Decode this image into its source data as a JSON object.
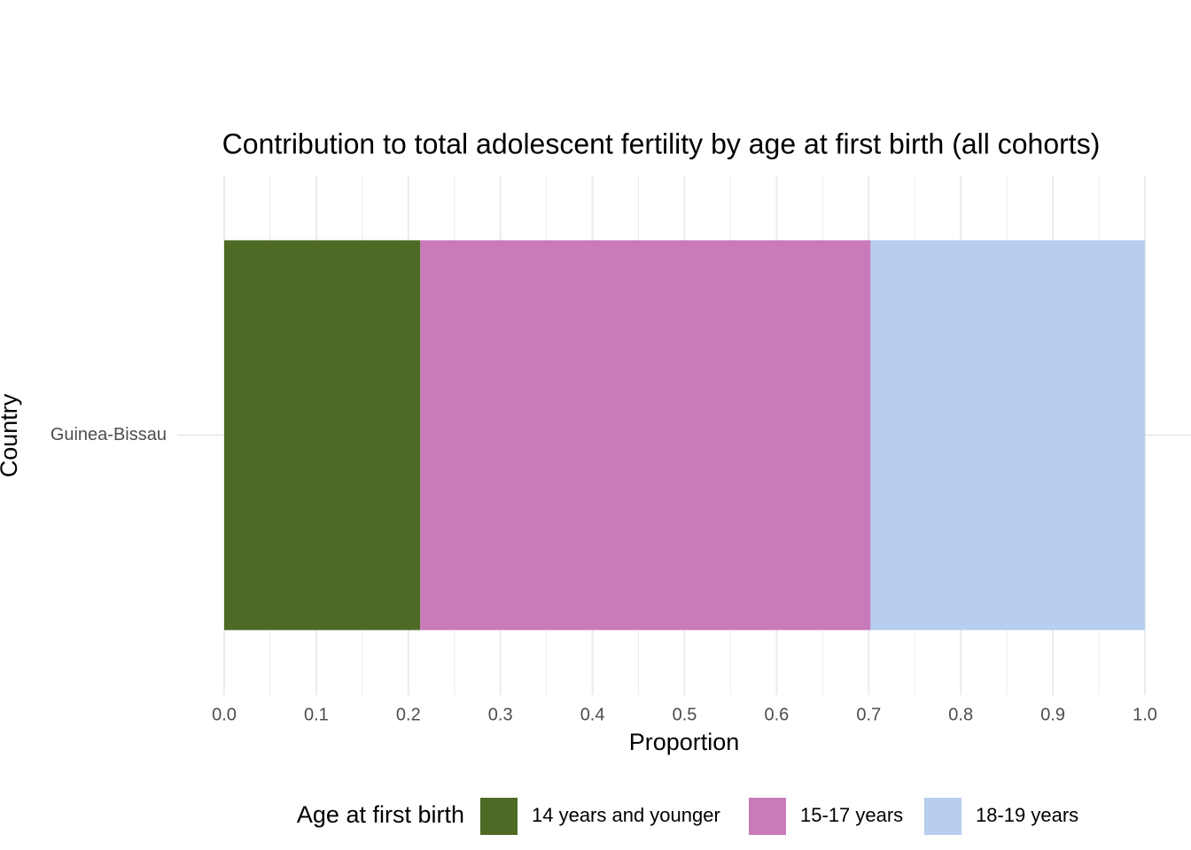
{
  "chart_data": {
    "type": "stacked-barh",
    "title": "Contribution to total adolescent fertility by age at first birth (all cohorts)",
    "x_label": "Proportion",
    "y_label": "Country",
    "categories": [
      "Guinea-Bissau"
    ],
    "series": [
      {
        "name": "14 years and younger",
        "color": "#4e6a25",
        "values": [
          0.213
        ]
      },
      {
        "name": "15-17 years",
        "color": "#c87aba",
        "values": [
          0.489
        ]
      },
      {
        "name": "18-19 years",
        "color": "#b7cef0",
        "values": [
          0.298
        ]
      }
    ],
    "legend_title": "Age at first birth",
    "legend_position": "bottom",
    "xlim": [
      0,
      1
    ],
    "xticks": [
      {
        "value": 0,
        "label": "0.0"
      },
      0.1,
      0.2,
      0.3,
      0.4,
      0.5,
      0.6,
      0.7,
      0.8,
      0.9,
      {
        "value": 1,
        "label": "1.0"
      }
    ],
    "x_minor_grid": [
      0.05,
      0.15,
      0.25,
      0.35,
      0.45,
      0.55,
      0.65,
      0.75,
      0.85,
      0.95
    ],
    "grid": true
  }
}
